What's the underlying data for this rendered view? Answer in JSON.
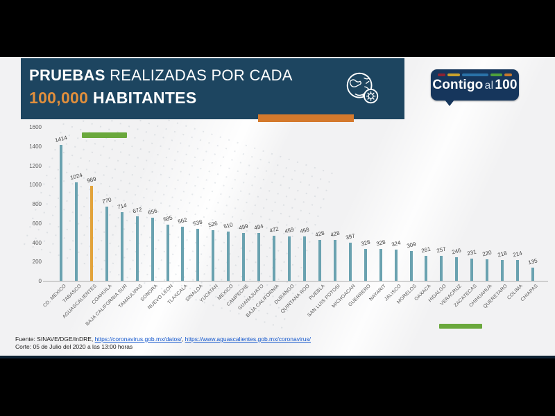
{
  "header": {
    "title_line1_bold": "PRUEBAS",
    "title_line1_rest": "REALIZADAS POR CADA",
    "title_line2_accent": "100,000",
    "title_line2_rest": "HABITANTES",
    "icon": "globe-virus-icon"
  },
  "logo": {
    "word1": "Contigo",
    "word2": "al",
    "word3": "100",
    "stripe_colors": [
      "#8e2233",
      "#c9a22d",
      "#2a72a8",
      "#4ea03c",
      "#c8782c"
    ]
  },
  "chart_data": {
    "type": "bar",
    "title": "PRUEBAS REALIZADAS POR CADA 100,000 HABITANTES",
    "categories": [
      "CD. MEXICO",
      "TABASCO",
      "AGUASCALIENTES",
      "COAHUILA",
      "BAJA CALIFORNIA SUR",
      "TAMAULIPAS",
      "SONORA",
      "NUEVO LEON",
      "TLAXCALA",
      "SINALOA",
      "YUCATAN",
      "MEXICO",
      "CAMPECHE",
      "GUANAJUATO",
      "BAJA CALIFORNIA",
      "DURANGO",
      "QUINTANA ROO",
      "PUEBLA",
      "SAN LUIS POTOSI",
      "MICHOACAN",
      "GUERRERO",
      "NAYARIT",
      "JALISCO",
      "MORELOS",
      "OAXACA",
      "HIDALGO",
      "VERACRUZ",
      "ZACATECAS",
      "CHIHUAHUA",
      "QUERETARO",
      "COLIMA",
      "CHIAPAS"
    ],
    "values": [
      1414,
      1024,
      989,
      770,
      714,
      672,
      656,
      585,
      562,
      538,
      526,
      510,
      499,
      494,
      472,
      459,
      458,
      428,
      428,
      397,
      328,
      328,
      324,
      309,
      261,
      257,
      246,
      231,
      220,
      218,
      214,
      135
    ],
    "ylim": [
      0,
      1600
    ],
    "yticks": [
      "1600",
      "1400",
      "1200",
      "1000",
      "800",
      "600",
      "400",
      "200",
      "0"
    ],
    "xlabel": "",
    "ylabel": "",
    "grid": false,
    "legend": "none",
    "bar_color": "#6aa2b0",
    "highlight_index": 2,
    "highlight_color": "#e2a33b"
  },
  "annotations": {
    "green_color": "#6aa83c",
    "accent_color": "#d4792c"
  },
  "footer": {
    "fuente_label": "Fuente: SINAVE/DGE/InDRE,",
    "link1": "https://coronavirus.gob.mx/datos/",
    "sep": ",",
    "link2": "https://www.aguascalientes.gob.mx/coronavirus/",
    "corte": "Corte: 05 de Julio del 2020 a las 13:00 horas"
  }
}
